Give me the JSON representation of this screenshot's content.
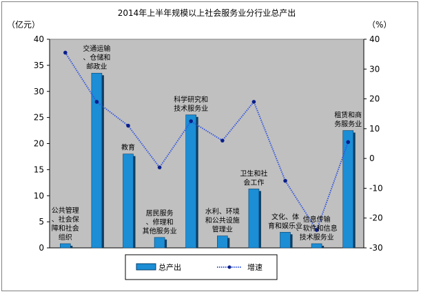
{
  "chart_data": {
    "type": "bar+line",
    "title": "2014年上半年规模以上社会服务业分行业总产出",
    "y_left_unit": "（亿元）",
    "y_right_unit": "（%）",
    "ylim_left": [
      0,
      40
    ],
    "ylim_right": [
      -30,
      40
    ],
    "left_ticks": [
      "0",
      "5",
      "10",
      "15",
      "20",
      "25",
      "30",
      "35",
      "40"
    ],
    "right_ticks": [
      "-30",
      "-20",
      "-10",
      "0",
      "10",
      "20",
      "30",
      "40"
    ],
    "categories": [
      [
        "公共管理",
        "、社会保",
        "障和社会",
        "组织"
      ],
      [
        "交通运输",
        "、仓储和",
        "邮政业"
      ],
      [
        "教育"
      ],
      [
        "居民服务",
        "、修理和",
        "其他服务业"
      ],
      [
        "科学研究和",
        "技术服务业"
      ],
      [
        "水利、环境",
        "和公共设施",
        "管理业"
      ],
      [
        "卫生和社",
        "会工作"
      ],
      [
        "文化、体",
        "育和娱乐业"
      ],
      [
        "信息传输",
        "、软件和信息",
        "技术服务业"
      ],
      [
        "租赁和商",
        "务服务业"
      ]
    ],
    "series": [
      {
        "name": "总产出",
        "type": "bar",
        "axis": "left",
        "values": [
          0.8,
          33.5,
          18.0,
          2.0,
          25.5,
          2.3,
          11.3,
          3.0,
          0.8,
          22.5
        ]
      },
      {
        "name": "增速",
        "type": "line",
        "axis": "right",
        "values": [
          35.5,
          19.0,
          11.0,
          -3.0,
          12.5,
          6.0,
          19.0,
          -7.5,
          -24.0,
          5.5
        ]
      }
    ],
    "colors": {
      "bar": "#1b8ed6",
      "bar_dark": "#0a3f66",
      "line": "#3355dd",
      "plot_bg": "#c0c0c0"
    },
    "grid": false,
    "legend_position": "bottom"
  }
}
